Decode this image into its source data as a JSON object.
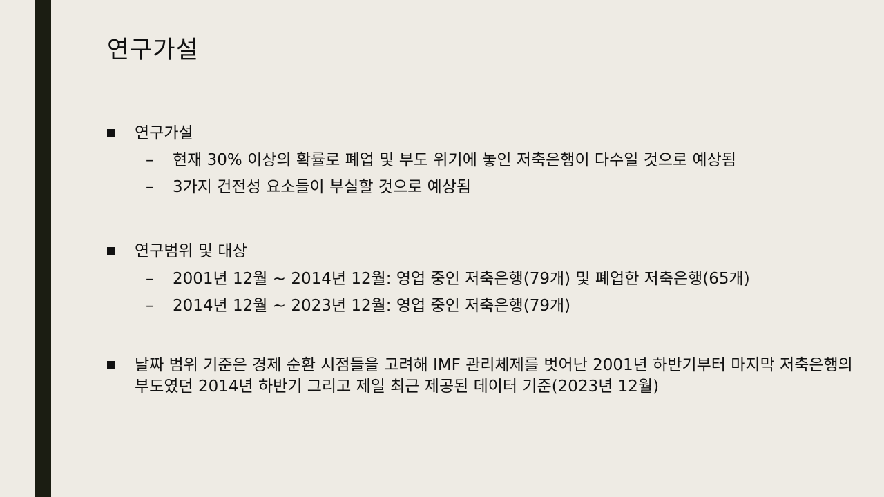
{
  "slide": {
    "title": "연구가설"
  },
  "sections": [
    {
      "heading": "연구가설",
      "items": [
        "현재 30% 이상의 확률로 폐업 및 부도 위기에 놓인 저축은행이 다수일 것으로 예상됨",
        "3가지 건전성 요소들이 부실할 것으로 예상됨"
      ]
    },
    {
      "heading": "연구범위 및 대상",
      "items": [
        "2001년 12월 ~ 2014년 12월: 영업 중인 저축은행(79개) 및  폐업한 저축은행(65개)",
        "2014년 12월 ~ 2023년 12월: 영업 중인 저축은행(79개)"
      ]
    },
    {
      "heading": "날짜 범위 기준은 경제 순환 시점들을 고려해 IMF 관리체제를 벗어난 2001년 하반기부터 마지막 저축은행의 부도였던 2014년 하반기 그리고 제일 최근 제공된 데이터 기준(2023년 12월)",
      "items": []
    }
  ],
  "colors": {
    "background": "#eeebe4",
    "accent_bar": "#1b1d12",
    "text": "#111111"
  }
}
